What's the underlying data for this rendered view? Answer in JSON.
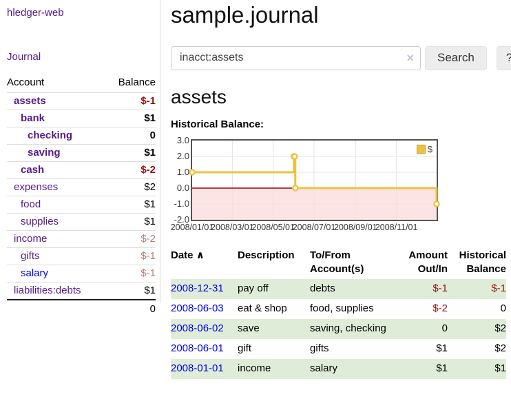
{
  "colors": {
    "accent_purple": "#551a8b",
    "link_blue": "#0000ee",
    "negative_strong": "#941111",
    "negative_soft": "#bb7b7b",
    "row_green": "#dfedd8",
    "chart_line": "#edc240",
    "chart_negative_bg": "#fbdcdc",
    "chart_zero_line": "#a40000",
    "chart_border": "#545454"
  },
  "brand": "hledger-web",
  "nav": {
    "journal": "Journal"
  },
  "sidebar": {
    "account_header": "Account",
    "balance_header": "Balance",
    "rows": [
      {
        "name": "assets",
        "balance": "$-1"
      },
      {
        "name": "bank",
        "balance": "$1"
      },
      {
        "name": "checking",
        "balance": "0"
      },
      {
        "name": "saving",
        "balance": "$1"
      },
      {
        "name": "cash",
        "balance": "$-2"
      },
      {
        "name": "expenses",
        "balance": "$2"
      },
      {
        "name": "food",
        "balance": "$1"
      },
      {
        "name": "supplies",
        "balance": "$1"
      },
      {
        "name": "income",
        "balance": "$-2"
      },
      {
        "name": "gifts",
        "balance": "$-1"
      },
      {
        "name": "salary",
        "balance": "$-1"
      },
      {
        "name": "liabilities:debts",
        "balance": "$1"
      }
    ],
    "total": "0"
  },
  "main": {
    "title": "sample.journal",
    "search": {
      "value": "inacct:assets",
      "clear": "×",
      "button_label": "Search",
      "help_label": "?"
    },
    "account_heading": "assets"
  },
  "chart_data": {
    "type": "line",
    "title": "Historical Balance:",
    "step": true,
    "grid": true,
    "legend_position": "top-right",
    "xlabel": "",
    "ylabel": "",
    "ylim": [
      -2.0,
      3.0
    ],
    "x_range": [
      "2008-01-01",
      "2008-12-31"
    ],
    "yticks": [
      "3.0",
      "2.0",
      "1.0",
      "0.0",
      "-1.0",
      "-2.0"
    ],
    "xticks": [
      {
        "date": "2008-01-01",
        "label": "2008/01/01"
      },
      {
        "date": "2008-03-01",
        "label": "2008/03/01"
      },
      {
        "date": "2008-05-01",
        "label": "2008/05/01"
      },
      {
        "date": "2008-07-01",
        "label": "2008/07/01"
      },
      {
        "date": "2008-09-01",
        "label": "2008/09/01"
      },
      {
        "date": "2008-11-01",
        "label": "2008/11/01"
      }
    ],
    "series": [
      {
        "name": "$",
        "color": "#edc240",
        "points": [
          [
            "2008-01-01",
            1
          ],
          [
            "2008-06-01",
            2
          ],
          [
            "2008-06-02",
            2
          ],
          [
            "2008-06-03",
            0
          ],
          [
            "2008-12-31",
            -1
          ]
        ]
      }
    ]
  },
  "register": {
    "sort_indicator": "∧",
    "headers": {
      "date": "Date",
      "description": "Description",
      "tofrom": "To/From Account(s)",
      "amount": "Amount Out/In",
      "balance": "Historical Balance"
    },
    "rows": [
      {
        "date": "2008-12-31",
        "description": "pay off",
        "accounts": "debts",
        "amount": "$-1",
        "balance": "$-1"
      },
      {
        "date": "2008-06-03",
        "description": "eat & shop",
        "accounts": "food, supplies",
        "amount": "$-2",
        "balance": "0"
      },
      {
        "date": "2008-06-02",
        "description": "save",
        "accounts": "saving, checking",
        "amount": "0",
        "balance": "$2"
      },
      {
        "date": "2008-06-01",
        "description": "gift",
        "accounts": "gifts",
        "amount": "$1",
        "balance": "$2"
      },
      {
        "date": "2008-01-01",
        "description": "income",
        "accounts": "salary",
        "amount": "$1",
        "balance": "$1"
      }
    ]
  }
}
